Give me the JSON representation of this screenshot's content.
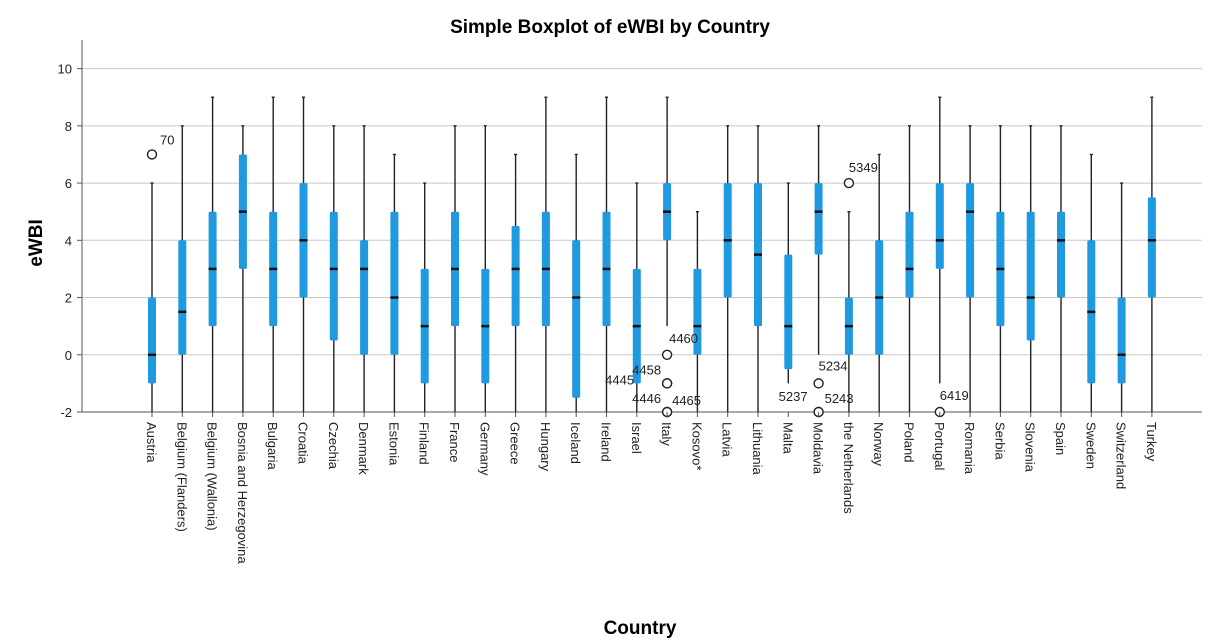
{
  "chart_data": {
    "type": "boxplot",
    "title": "Simple Boxplot of eWBI by Country",
    "xlabel": "Country",
    "ylabel": "eWBI",
    "ylim": [
      -2,
      11
    ],
    "yticks": [
      -2,
      0,
      2,
      4,
      6,
      8,
      10
    ],
    "grid": "horizontal",
    "box_color": "#1f9ae0",
    "categories": [
      "Austria",
      "Belgium (Flanders)",
      "Belgium (Wallonia)",
      "Bosnia and Herzegovina",
      "Bulgaria",
      "Croatia",
      "Czechia",
      "Denmark",
      "Estonia",
      "Finland",
      "France",
      "Germany",
      "Greece",
      "Hungary",
      "Iceland",
      "Ireland",
      "Israel",
      "Italy",
      "Kosovo*",
      "Latvia",
      "Lithuania",
      "Malta",
      "Moldavia",
      "the Netherlands",
      "Norway",
      "Poland",
      "Portugal",
      "Romania",
      "Serbia",
      "Slovenia",
      "Spain",
      "Sweden",
      "Switzerland",
      "Turkey"
    ],
    "boxes": [
      {
        "min": -2,
        "q1": -1,
        "median": 0,
        "q3": 2,
        "max": 6
      },
      {
        "min": -2,
        "q1": 0,
        "median": 1.5,
        "q3": 4,
        "max": 8
      },
      {
        "min": -2,
        "q1": 1,
        "median": 3,
        "q3": 5,
        "max": 9
      },
      {
        "min": -2,
        "q1": 3,
        "median": 5,
        "q3": 7,
        "max": 8
      },
      {
        "min": -2,
        "q1": 1,
        "median": 3,
        "q3": 5,
        "max": 9
      },
      {
        "min": -2,
        "q1": 2,
        "median": 4,
        "q3": 6,
        "max": 9
      },
      {
        "min": -2,
        "q1": 0.5,
        "median": 3,
        "q3": 5,
        "max": 8
      },
      {
        "min": -2,
        "q1": 0,
        "median": 3,
        "q3": 4,
        "max": 8
      },
      {
        "min": -2,
        "q1": 0,
        "median": 2,
        "q3": 5,
        "max": 7
      },
      {
        "min": -2,
        "q1": -1,
        "median": 1,
        "q3": 3,
        "max": 6
      },
      {
        "min": -2,
        "q1": 1,
        "median": 3,
        "q3": 5,
        "max": 8
      },
      {
        "min": -2,
        "q1": -1,
        "median": 1,
        "q3": 3,
        "max": 8
      },
      {
        "min": -2,
        "q1": 1,
        "median": 3,
        "q3": 4.5,
        "max": 7
      },
      {
        "min": -2,
        "q1": 1,
        "median": 3,
        "q3": 5,
        "max": 9
      },
      {
        "min": -2,
        "q1": -1.5,
        "median": 2,
        "q3": 4,
        "max": 7
      },
      {
        "min": -2,
        "q1": 1,
        "median": 3,
        "q3": 5,
        "max": 9
      },
      {
        "min": -2,
        "q1": -1,
        "median": 1,
        "q3": 3,
        "max": 6
      },
      {
        "min": 1,
        "q1": 4,
        "median": 5,
        "q3": 6,
        "max": 9
      },
      {
        "min": -2,
        "q1": 0,
        "median": 1,
        "q3": 3,
        "max": 5
      },
      {
        "min": -2,
        "q1": 2,
        "median": 4,
        "q3": 6,
        "max": 8
      },
      {
        "min": -2,
        "q1": 1,
        "median": 3.5,
        "q3": 6,
        "max": 8
      },
      {
        "min": -1,
        "q1": -0.5,
        "median": 1,
        "q3": 3.5,
        "max": 6
      },
      {
        "min": 0,
        "q1": 3.5,
        "median": 5,
        "q3": 6,
        "max": 8
      },
      {
        "min": -2,
        "q1": 0,
        "median": 1,
        "q3": 2,
        "max": 5
      },
      {
        "min": -2,
        "q1": 0,
        "median": 2,
        "q3": 4,
        "max": 7
      },
      {
        "min": -2,
        "q1": 2,
        "median": 3,
        "q3": 5,
        "max": 8
      },
      {
        "min": -1,
        "q1": 3,
        "median": 4,
        "q3": 6,
        "max": 9
      },
      {
        "min": -2,
        "q1": 2,
        "median": 5,
        "q3": 6,
        "max": 8
      },
      {
        "min": -2,
        "q1": 1,
        "median": 3,
        "q3": 5,
        "max": 8
      },
      {
        "min": -2,
        "q1": 0.5,
        "median": 2,
        "q3": 5,
        "max": 8
      },
      {
        "min": -2,
        "q1": 2,
        "median": 4,
        "q3": 5,
        "max": 8
      },
      {
        "min": -2,
        "q1": -1,
        "median": 1.5,
        "q3": 4,
        "max": 7
      },
      {
        "min": -2,
        "q1": -1,
        "median": 0,
        "q3": 2,
        "max": 6
      },
      {
        "min": -2,
        "q1": 2,
        "median": 4,
        "q3": 5.5,
        "max": 9
      }
    ],
    "outliers": [
      {
        "category": "Austria",
        "value": 7,
        "label": "70"
      },
      {
        "category": "Italy",
        "value": 0,
        "label": "4460"
      },
      {
        "category": "Italy",
        "value": -1,
        "label": "4458"
      },
      {
        "category": "Italy",
        "value": -1,
        "label": "4445"
      },
      {
        "category": "Italy",
        "value": -2,
        "label": "4446"
      },
      {
        "category": "Italy",
        "value": -2,
        "label": "4465"
      },
      {
        "category": "Moldavia",
        "value": -1,
        "label": "5234"
      },
      {
        "category": "Moldavia",
        "value": -2,
        "label": "5237"
      },
      {
        "category": "Moldavia",
        "value": -2,
        "label": "5243"
      },
      {
        "category": "the Netherlands",
        "value": 6,
        "label": "5349"
      },
      {
        "category": "Portugal",
        "value": -2,
        "label": "6419"
      }
    ]
  }
}
